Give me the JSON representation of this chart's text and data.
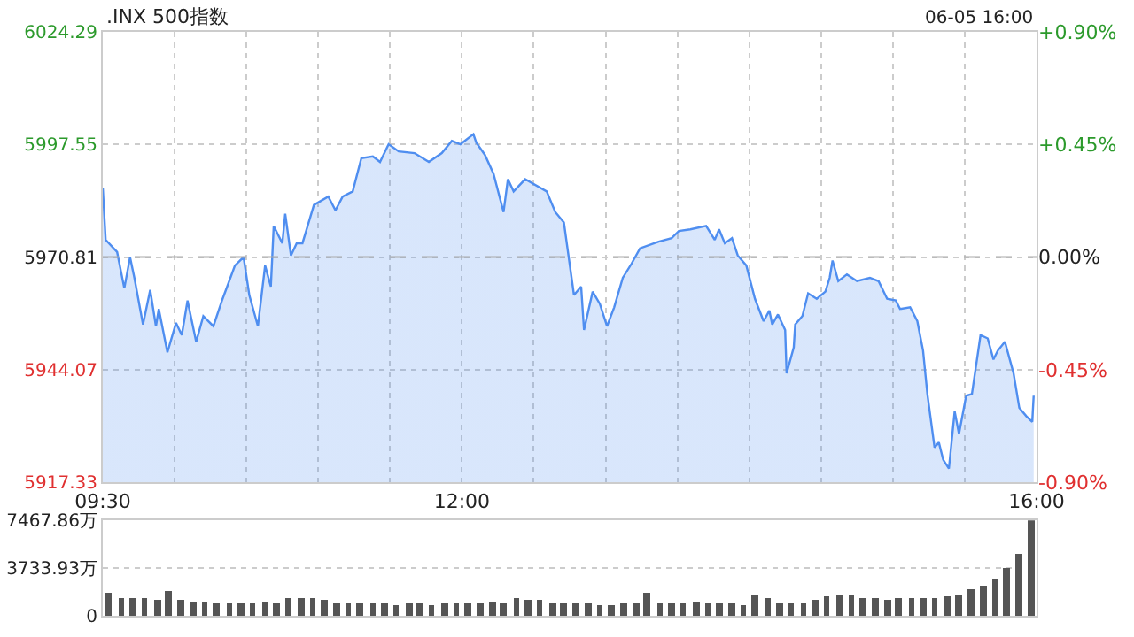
{
  "chart_data": [
    {
      "type": "area",
      "title": ".INX 500指数",
      "annotations": [
        "06-05 16:00"
      ],
      "series": [
        {
          "color": "#4f8ef0",
          "x": [
            9.5,
            9.52,
            9.6,
            9.65,
            9.69,
            9.72,
            9.78,
            9.83,
            9.87,
            9.89,
            9.95,
            10.01,
            10.05,
            10.09,
            10.15,
            10.2,
            10.27,
            10.33,
            10.42,
            10.48,
            10.52,
            10.58,
            10.63,
            10.67,
            10.69,
            10.75,
            10.77,
            10.81,
            10.85,
            10.89,
            10.97,
            11.07,
            11.12,
            11.17,
            11.24,
            11.3,
            11.38,
            11.43,
            11.49,
            11.56,
            11.67,
            11.77,
            11.86,
            11.93,
            11.99,
            12.08,
            12.1,
            12.16,
            12.22,
            12.29,
            12.32,
            12.36,
            12.44,
            12.59,
            12.65,
            12.71,
            12.78,
            12.83,
            12.85,
            12.91,
            12.96,
            13.01,
            13.06,
            13.12,
            13.18,
            13.24,
            13.37,
            13.46,
            13.51,
            13.59,
            13.7,
            13.76,
            13.79,
            13.83,
            13.88,
            13.92,
            13.98,
            14.04,
            14.1,
            14.14,
            14.16,
            14.2,
            14.25,
            14.26,
            14.31,
            14.32,
            14.37,
            14.41,
            14.47,
            14.53,
            14.56,
            14.58,
            14.62,
            14.68,
            14.75,
            14.84,
            14.9,
            14.96,
            15.02,
            15.05,
            15.12,
            15.17,
            15.21,
            15.24,
            15.29,
            15.32,
            15.35,
            15.39,
            15.43,
            15.46,
            15.51,
            15.55,
            15.61,
            15.66,
            15.7,
            15.73,
            15.78,
            15.84,
            15.88,
            15.93,
            15.97,
            15.98
          ],
          "values": [
            5987.3,
            5974.9,
            5972.0,
            5963.4,
            5970.8,
            5965.9,
            5954.8,
            5963.0,
            5954.4,
            5958.5,
            5948.2,
            5955.2,
            5952.3,
            5960.5,
            5950.7,
            5956.8,
            5954.4,
            5960.5,
            5968.8,
            5970.8,
            5961.8,
            5954.4,
            5968.8,
            5963.8,
            5978.2,
            5974.1,
            5981.1,
            5971.2,
            5974.1,
            5974.1,
            5983.2,
            5985.2,
            5981.9,
            5985.2,
            5986.4,
            5994.3,
            5994.7,
            5993.4,
            5997.6,
            5995.9,
            5995.5,
            5993.4,
            5995.5,
            5998.4,
            5997.6,
            6000.0,
            5998.0,
            5995.1,
            5990.6,
            5981.5,
            5989.3,
            5986.4,
            5989.3,
            5986.4,
            5981.5,
            5979.0,
            5961.8,
            5963.8,
            5953.5,
            5962.6,
            5959.7,
            5954.4,
            5958.9,
            5965.9,
            5969.2,
            5972.9,
            5974.5,
            5975.3,
            5977.0,
            5977.4,
            5978.2,
            5974.9,
            5977.4,
            5974.1,
            5975.3,
            5971.2,
            5968.8,
            5960.9,
            5955.6,
            5958.1,
            5954.8,
            5957.2,
            5953.5,
            5943.2,
            5949.4,
            5954.8,
            5956.8,
            5962.2,
            5960.9,
            5962.6,
            5965.9,
            5970.0,
            5965.1,
            5966.7,
            5965.1,
            5965.9,
            5965.1,
            5960.9,
            5960.5,
            5958.5,
            5958.9,
            5955.6,
            5948.6,
            5938.3,
            5925.6,
            5926.8,
            5922.7,
            5920.6,
            5934.2,
            5928.8,
            5937.9,
            5938.3,
            5952.3,
            5951.5,
            5946.5,
            5948.6,
            5950.7,
            5943.2,
            5935.0,
            5933.0,
            5931.7,
            5937.9
          ]
        }
      ],
      "xlim": [
        9.5,
        16
      ],
      "xticks": [
        {
          "value": 9.5,
          "label": "09:30"
        },
        {
          "value": 10,
          "label": null
        },
        {
          "value": 10.5,
          "label": null
        },
        {
          "value": 11,
          "label": null
        },
        {
          "value": 11.5,
          "label": null
        },
        {
          "value": 12,
          "label": "12:00"
        },
        {
          "value": 12.5,
          "label": null
        },
        {
          "value": 13,
          "label": null
        },
        {
          "value": 13.5,
          "label": null
        },
        {
          "value": 14,
          "label": null
        },
        {
          "value": 14.5,
          "label": null
        },
        {
          "value": 15,
          "label": null
        },
        {
          "value": 15.5,
          "label": null
        },
        {
          "value": 16,
          "label": "16:00"
        }
      ],
      "ylim": [
        5917.33,
        6024.29
      ],
      "yticks": [
        5917.33,
        5944.07,
        5970.81,
        5997.55,
        6024.29
      ],
      "y2lim": [
        -0.9,
        0.9
      ],
      "y2ticks": [
        {
          "value": -0.9,
          "label": "-0.90%"
        },
        {
          "value": -0.45,
          "label": "-0.45%"
        },
        {
          "value": 0,
          "label": "0.00%"
        },
        {
          "value": 0.45,
          "label": "+0.45%"
        },
        {
          "value": 0.9,
          "label": "+0.90%"
        }
      ],
      "ref_lines": [
        {
          "axis": "y",
          "value": 5970.81,
          "line_style": "dashed",
          "color": "#aaaaaa"
        }
      ],
      "grid": true,
      "legend": false,
      "marker": "none",
      "line_style": "solid"
    },
    {
      "type": "bar",
      "tick_labels": "y",
      "x": [
        9.54,
        9.63,
        9.71,
        9.79,
        9.88,
        9.96,
        10.04,
        10.13,
        10.21,
        10.29,
        10.38,
        10.46,
        10.54,
        10.63,
        10.71,
        10.79,
        10.88,
        10.96,
        11.04,
        11.13,
        11.21,
        11.29,
        11.38,
        11.46,
        11.54,
        11.63,
        11.71,
        11.79,
        11.88,
        11.96,
        12.04,
        12.13,
        12.21,
        12.29,
        12.38,
        12.46,
        12.54,
        12.63,
        12.71,
        12.79,
        12.88,
        12.96,
        13.04,
        13.13,
        13.21,
        13.29,
        13.38,
        13.46,
        13.54,
        13.63,
        13.71,
        13.79,
        13.88,
        13.96,
        14.04,
        14.13,
        14.21,
        14.29,
        14.38,
        14.46,
        14.54,
        14.63,
        14.71,
        14.79,
        14.88,
        14.96,
        15.04,
        15.13,
        15.21,
        15.29,
        15.38,
        15.46,
        15.54,
        15.63,
        15.71,
        15.79,
        15.88,
        15.96
      ],
      "series": [
        {
          "color": "#555555",
          "values": [
            1800,
            1400,
            1300,
            1300,
            1200,
            1900,
            1200,
            1100,
            1100,
            1000,
            1000,
            900,
            1000,
            1100,
            1000,
            1300,
            1400,
            1300,
            1200,
            1000,
            900,
            900,
            900,
            900,
            800,
            900,
            900,
            800,
            900,
            900,
            900,
            1000,
            1100,
            1000,
            1300,
            1200,
            1200,
            1000,
            1000,
            900,
            900,
            800,
            800,
            900,
            900,
            1800,
            900,
            900,
            900,
            1100,
            1000,
            900,
            900,
            800,
            1700,
            1300,
            900,
            1000,
            1000,
            1200,
            1500,
            1700,
            1600,
            1400,
            1300,
            1200,
            1300,
            1300,
            1300,
            1400,
            1500,
            1600,
            2000,
            2400,
            2900,
            3700,
            4800,
            7467.86
          ]
        }
      ],
      "xlim": [
        9.5,
        16
      ],
      "ylim": [
        0,
        7467.86
      ],
      "yticks": [
        0,
        {
          "value": 3733.93,
          "label": "3733.93万"
        },
        {
          "value": 7467.86,
          "label": "7467.86万"
        }
      ],
      "grid": "y",
      "legend": false
    }
  ]
}
